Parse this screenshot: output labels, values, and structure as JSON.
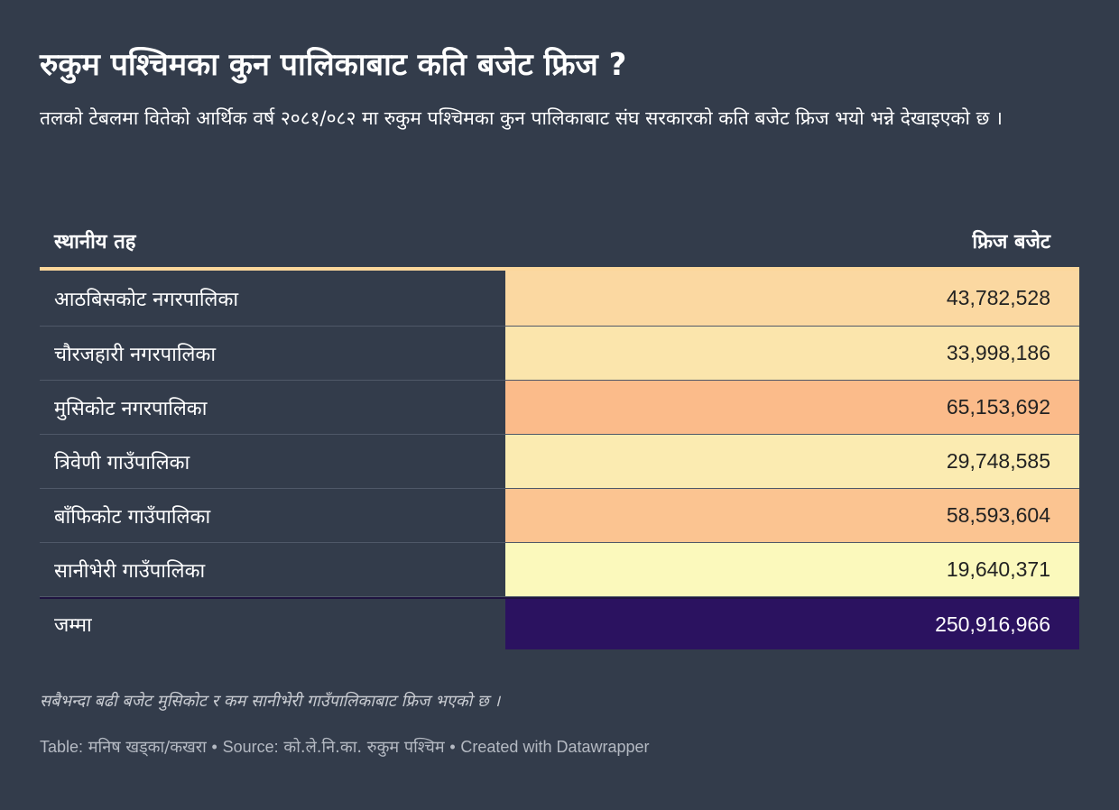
{
  "header": {
    "title": "रुकुम पश्चिमका कुन पालिकाबाट कति बजेट फ्रिज ?",
    "description": "तलको टेबलमा वितेको आर्थिक वर्ष २०८१/०८२ मा रुकुम पश्चिमका कुन पालिकाबाट संघ सरकारको कति बजेट फ्रिज भयो भन्ने देखाइएको छ ।"
  },
  "chart_data": {
    "type": "table",
    "columns": [
      "स्थानीय तह",
      "फ्रिज बजेट"
    ],
    "rows": [
      {
        "name": "आठबिसकोट नगरपालिका",
        "value": "43,782,528",
        "amount": 43782528
      },
      {
        "name": "चौरजहारी नगरपालिका",
        "value": "33,998,186",
        "amount": 33998186
      },
      {
        "name": "मुसिकोट नगरपालिका",
        "value": "65,153,692",
        "amount": 65153692
      },
      {
        "name": "त्रिवेणी गाउँपालिका",
        "value": "29,748,585",
        "amount": 29748585
      },
      {
        "name": "बाँफिकोट गाउँपालिका",
        "value": "58,593,604",
        "amount": 58593604
      },
      {
        "name": "सानीभेरी गाउँपालिका",
        "value": "19,640,371",
        "amount": 19640371
      }
    ],
    "total": {
      "name": "जम्मा",
      "value": "250,916,966",
      "amount": 250916966
    }
  },
  "colors": {
    "background": "#333c4b",
    "header_rule": "#fdd79b",
    "scale_low": "#fbf9bc",
    "scale_high": "#fbbb8a",
    "total_fill": "#2b1260"
  },
  "footer": {
    "note": "सबैभन्दा बढी बजेट मुसिकोट र कम सानीभेरी गाउँपालिकाबाट फ्रिज भएको छ ।",
    "credit_label": "Table:",
    "credit_author": "मनिष खड्का/कखरा",
    "source_label": "Source:",
    "source": "को.ले.नि.का. रुकुम पश्चिम",
    "created": "Created with Datawrapper",
    "separator": "•"
  }
}
